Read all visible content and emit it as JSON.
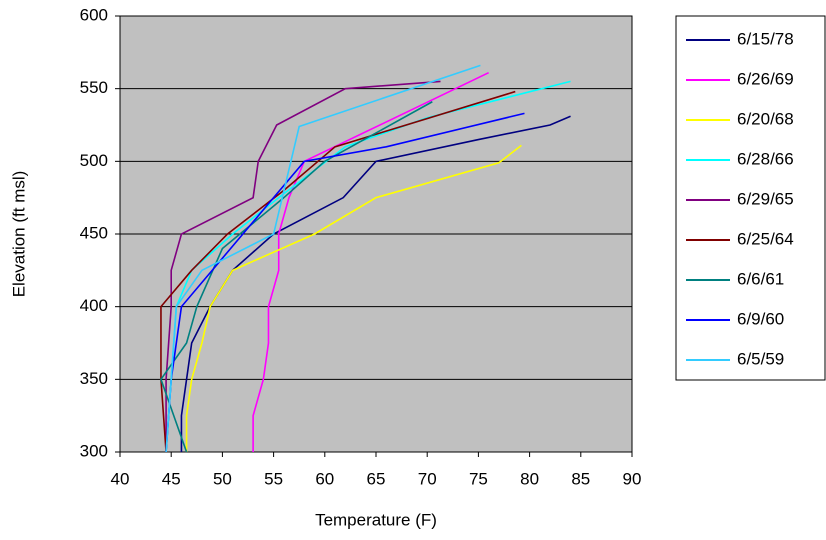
{
  "chart_data": {
    "type": "line",
    "xlabel": "Temperature (F)",
    "ylabel": "Elevation (ft msl)",
    "xlim": [
      40,
      90
    ],
    "xticks": [
      40,
      45,
      50,
      55,
      60,
      65,
      70,
      75,
      80,
      85,
      90
    ],
    "ylim": [
      300,
      600
    ],
    "yticks": [
      300,
      350,
      400,
      450,
      500,
      550,
      600
    ],
    "grid": true,
    "legend": "right",
    "background": "#c0c0c0",
    "series": [
      {
        "name": "6/15/78",
        "color": "#000080",
        "x": [
          46,
          46,
          46.5,
          47,
          48.8,
          51,
          55,
          61.8,
          65,
          75,
          82,
          84
        ],
        "values": [
          300,
          325,
          350,
          375,
          400,
          425,
          450,
          475,
          500,
          515,
          525,
          531
        ]
      },
      {
        "name": "6/26/69",
        "color": "#ff00ff",
        "x": [
          53,
          53,
          54,
          54.5,
          54.5,
          55.5,
          55.5,
          56.5,
          58,
          76
        ],
        "values": [
          300,
          325,
          350,
          375,
          400,
          425,
          450,
          475,
          500,
          561
        ]
      },
      {
        "name": "6/20/68",
        "color": "#ffff00",
        "x": [
          46.5,
          46.5,
          47,
          48,
          48.8,
          51,
          59,
          65,
          77,
          79.2
        ],
        "values": [
          300,
          325,
          350,
          375,
          400,
          425,
          450,
          475,
          499,
          511
        ]
      },
      {
        "name": "6/28/66",
        "color": "#00ffff",
        "x": [
          44.5,
          45,
          45.5,
          47,
          51,
          55.5,
          62,
          70,
          84
        ],
        "values": [
          300,
          350,
          400,
          425,
          450,
          475,
          510,
          530,
          555
        ]
      },
      {
        "name": "6/29/65",
        "color": "#800080",
        "x": [
          44.5,
          44.5,
          45,
          45,
          46,
          53,
          53.5,
          55.3,
          62,
          71.3
        ],
        "values": [
          300,
          350,
          400,
          425,
          450,
          475,
          500,
          525,
          550,
          555
        ]
      },
      {
        "name": "6/25/64",
        "color": "#800000",
        "x": [
          44.5,
          44,
          44,
          47,
          50.5,
          56,
          61,
          78.6
        ],
        "values": [
          300,
          350,
          400,
          425,
          450,
          480,
          510,
          548
        ]
      },
      {
        "name": "6/6/61",
        "color": "#008080",
        "x": [
          46.5,
          46,
          44,
          46.5,
          47.5,
          50,
          56,
          60,
          70.5
        ],
        "values": [
          300,
          310,
          350,
          375,
          400,
          440,
          475,
          500,
          541
        ]
      },
      {
        "name": "6/9/60",
        "color": "#0000ff",
        "x": [
          44.5,
          45,
          46,
          49,
          52,
          55,
          58,
          66,
          79.5
        ],
        "values": [
          300,
          350,
          400,
          425,
          450,
          475,
          500,
          510,
          533
        ]
      },
      {
        "name": "6/5/59",
        "color": "#33ccff",
        "x": [
          44.5,
          45,
          45.5,
          48,
          55,
          57.5,
          75.2
        ],
        "values": [
          300,
          350,
          400,
          425,
          450,
          524,
          566
        ]
      }
    ]
  }
}
